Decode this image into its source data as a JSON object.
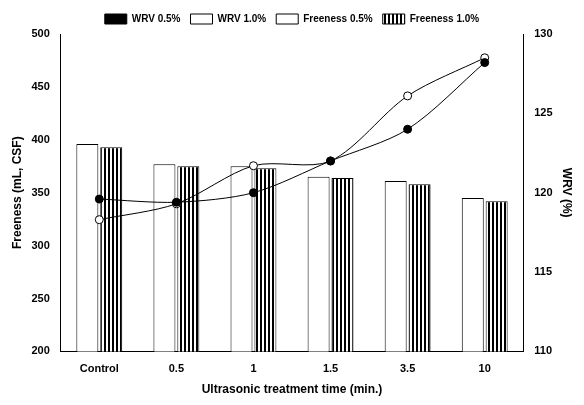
{
  "chart_data": {
    "type": "bar",
    "x_label": "Ultrasonic treatment time (min.)",
    "y_label": "Freeness (mL, CSF)",
    "y2_label": "WRV (%)",
    "categories": [
      "Control",
      "0.5",
      "1",
      "1.5",
      "3.5",
      "10"
    ],
    "series": [
      {
        "name": "Freeness 0.5%",
        "type": "bar",
        "color": "#ffffff",
        "values": [
          396,
          377,
          375,
          365,
          361,
          345
        ]
      },
      {
        "name": "Freeness 1.0%",
        "type": "bar",
        "color": "#000000",
        "values": [
          393,
          375,
          373,
          364,
          358,
          342
        ]
      },
      {
        "name": "WRV 0.5%",
        "type": "line",
        "axis": "y2",
        "color": "#000000",
        "marker": "circle",
        "values": [
          119.6,
          119.4,
          120.0,
          122.0,
          124.0,
          128.2
        ]
      },
      {
        "name": "WRV 1.0%",
        "type": "line",
        "axis": "y2",
        "color": "#000000",
        "marker": "open_circle",
        "values": [
          118.3,
          119.3,
          121.7,
          122.0,
          126.1,
          128.5
        ]
      }
    ],
    "ylim": [
      200,
      500
    ],
    "yticks": [
      200,
      250,
      300,
      350,
      400,
      450,
      500
    ],
    "y2lim": [
      110,
      130
    ],
    "y2ticks": [
      110,
      115,
      120,
      125,
      130
    ],
    "grid": false,
    "legend": "top"
  }
}
